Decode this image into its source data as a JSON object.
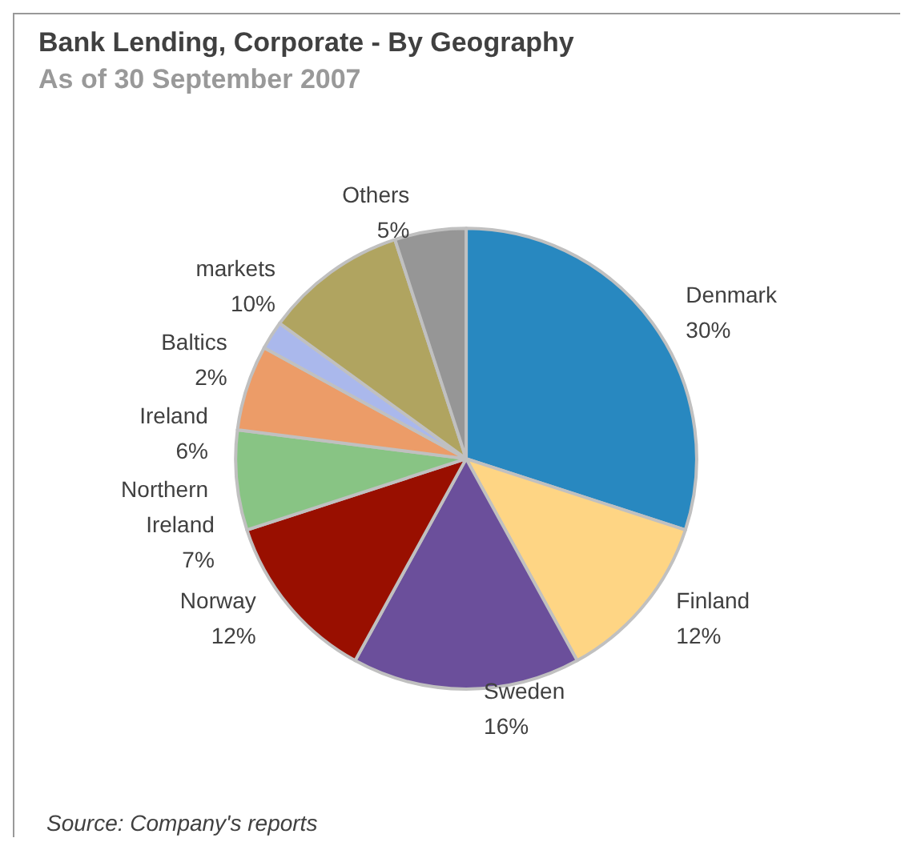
{
  "chart_data": {
    "type": "pie",
    "title": "Bank Lending, Corporate - By Geography",
    "subtitle": "As of 30 September 2007",
    "categories": [
      "Denmark",
      "Finland",
      "Sweden",
      "Norway",
      "Northern Ireland",
      "Ireland",
      "Baltics",
      "markets",
      "Others"
    ],
    "values": [
      30,
      12,
      16,
      12,
      7,
      6,
      2,
      10,
      5
    ],
    "value_labels": [
      "30%",
      "12%",
      "16%",
      "12%",
      "7%",
      "6%",
      "2%",
      "10%",
      "5%"
    ],
    "colors": [
      "#2888c0",
      "#fed584",
      "#6b4f9b",
      "#990f00",
      "#88c484",
      "#ec9c68",
      "#aab8ec",
      "#b0a460",
      "#969696"
    ],
    "annotations": [
      "Source: Company's reports"
    ],
    "legend": false
  }
}
